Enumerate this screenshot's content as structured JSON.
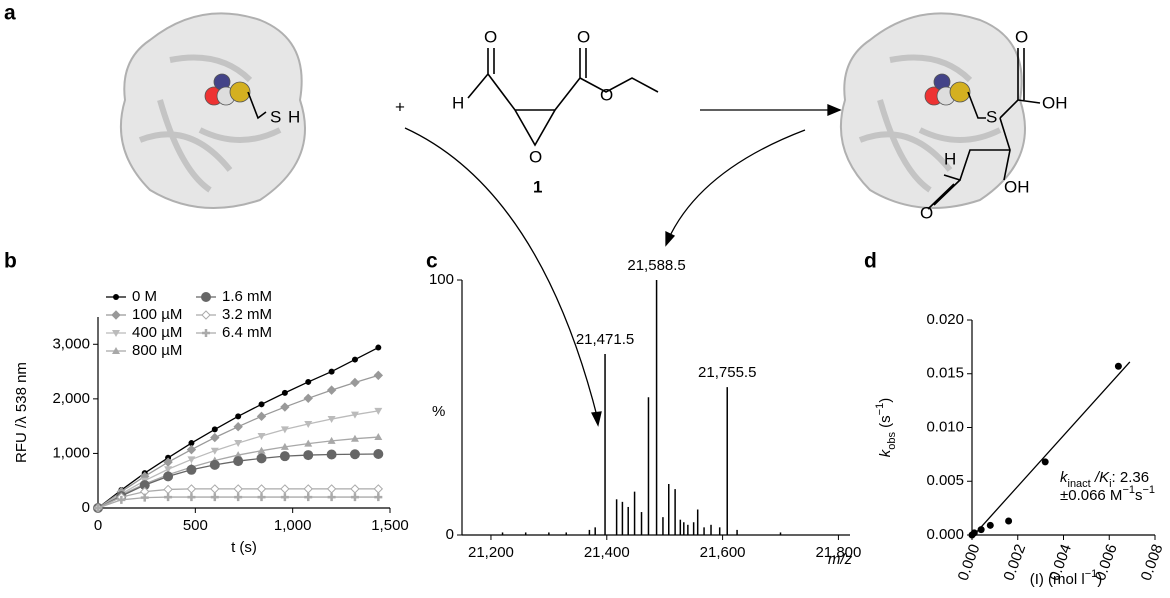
{
  "panel_labels": [
    "a",
    "b",
    "c",
    "d"
  ],
  "scheme": {
    "thiol": [
      "S",
      "H"
    ],
    "plus": "+",
    "reagent_atoms": [
      "O",
      "H",
      "O",
      "O",
      "O"
    ],
    "compound_number": "1",
    "product_atoms": [
      "S",
      "O",
      "OH",
      "H",
      "OH",
      "O"
    ]
  },
  "chart_data": [
    {
      "type": "line",
      "ylabel": "RFU /λ 538 nm",
      "xlabel": "t (s)",
      "x": [
        0,
        120,
        240,
        360,
        480,
        600,
        720,
        840,
        960,
        1080,
        1200,
        1320,
        1440
      ],
      "series": [
        {
          "name": "0 M",
          "color": "#000000",
          "marker": "circle",
          "values": [
            0,
            330,
            640,
            920,
            1190,
            1440,
            1680,
            1900,
            2110,
            2310,
            2500,
            2720,
            2940
          ]
        },
        {
          "name": "100 µM",
          "color": "#999999",
          "marker": "diamond",
          "values": [
            0,
            300,
            580,
            840,
            1070,
            1290,
            1490,
            1680,
            1850,
            2010,
            2160,
            2300,
            2430
          ]
        },
        {
          "name": "400 µM",
          "color": "#bbbbbb",
          "marker": "triangle-down",
          "values": [
            0,
            260,
            500,
            710,
            890,
            1050,
            1190,
            1320,
            1440,
            1540,
            1630,
            1710,
            1780
          ]
        },
        {
          "name": "800 µM",
          "color": "#a8a8a8",
          "marker": "triangle-up",
          "values": [
            0,
            240,
            440,
            610,
            750,
            870,
            970,
            1050,
            1120,
            1180,
            1230,
            1270,
            1300
          ]
        },
        {
          "name": "1.6 mM",
          "color": "#666666",
          "marker": "big-circle",
          "values": [
            0,
            220,
            420,
            580,
            700,
            790,
            860,
            910,
            950,
            970,
            980,
            985,
            990
          ]
        },
        {
          "name": "3.2 mM",
          "color": "#aaaaaa",
          "marker": "open-diamond",
          "values": [
            0,
            200,
            300,
            340,
            350,
            350,
            350,
            350,
            350,
            350,
            350,
            350,
            350
          ]
        },
        {
          "name": "6.4 mM",
          "color": "#aaaaaa",
          "marker": "plus",
          "values": [
            0,
            150,
            190,
            200,
            200,
            200,
            200,
            200,
            200,
            200,
            200,
            200,
            200
          ]
        }
      ],
      "xlim": [
        0,
        1500
      ],
      "ylim": [
        0,
        3500
      ],
      "xticks": [
        0,
        500,
        {
          "value": 1000,
          "label": "1,000"
        },
        {
          "value": 1500,
          "label": "1,500"
        }
      ],
      "yticks": [
        0,
        {
          "value": 1000,
          "label": "1,000"
        },
        {
          "value": 2000,
          "label": "2,000"
        },
        {
          "value": 3000,
          "label": "3,000"
        }
      ]
    },
    {
      "type": "spectrum",
      "ylabel": "%",
      "xlabel": "m/z",
      "color": "#000000",
      "x": [
        21220,
        21260,
        21300,
        21330,
        21370,
        21380,
        21397,
        21417,
        21427,
        21437,
        21448,
        21460,
        21472,
        21486,
        21497,
        21507,
        21518,
        21527,
        21533,
        21540,
        21550,
        21557,
        21568,
        21580,
        21595,
        21608,
        21625,
        21700
      ],
      "values": [
        1,
        1,
        1,
        1,
        2,
        3,
        71,
        14,
        13,
        11,
        17,
        9,
        54,
        100,
        7,
        20,
        18,
        6,
        5,
        4,
        5,
        10,
        3,
        4,
        3,
        58,
        2,
        1
      ],
      "peak_labels": [
        "21,471.5",
        "21,588.5",
        "21,755.5"
      ],
      "xlim": [
        21150,
        21820
      ],
      "ylim": [
        0,
        100
      ],
      "yticks": [
        0,
        100
      ],
      "xticks": [
        {
          "value": 21200,
          "label": "21,200"
        },
        {
          "value": 21400,
          "label": "21,400"
        },
        {
          "value": 21600,
          "label": "21,600"
        },
        {
          "value": 21800,
          "label": "21,800"
        }
      ]
    },
    {
      "type": "scatter",
      "color": "#000000",
      "x": [
        0,
        0.0001,
        0.0004,
        0.0008,
        0.0016,
        0.0032,
        0.0064
      ],
      "values": [
        0,
        0.0002,
        0.0005,
        0.0009,
        0.0013,
        0.0068,
        0.0157
      ],
      "fit": {
        "x": [
          0,
          0.0069
        ],
        "values": [
          -0.0002,
          0.0161
        ]
      },
      "ylabel": [
        "k",
        "obs",
        " (s",
        "−1",
        ")"
      ],
      "xlabel": [
        "(I) (mol l",
        "−1",
        ")"
      ],
      "annotation": [
        [
          "k",
          "inact",
          " /K",
          "i",
          ": 2.36"
        ],
        [
          "±0.066 M",
          "−1",
          "s",
          "−1"
        ]
      ],
      "xlim": [
        0,
        0.008
      ],
      "ylim": [
        0,
        0.02
      ],
      "xticks": [
        {
          "value": 0,
          "label": "0.000"
        },
        {
          "value": 0.002,
          "label": "0.002"
        },
        {
          "value": 0.004,
          "label": "0.004"
        },
        {
          "value": 0.006,
          "label": "0.006"
        },
        {
          "value": 0.008,
          "label": "0.008"
        }
      ],
      "yticks": [
        {
          "value": 0,
          "label": "0.000"
        },
        {
          "value": 0.005,
          "label": "0.005"
        },
        {
          "value": 0.01,
          "label": "0.010"
        },
        {
          "value": 0.015,
          "label": "0.015"
        },
        {
          "value": 0.02,
          "label": "0.020"
        }
      ]
    }
  ]
}
